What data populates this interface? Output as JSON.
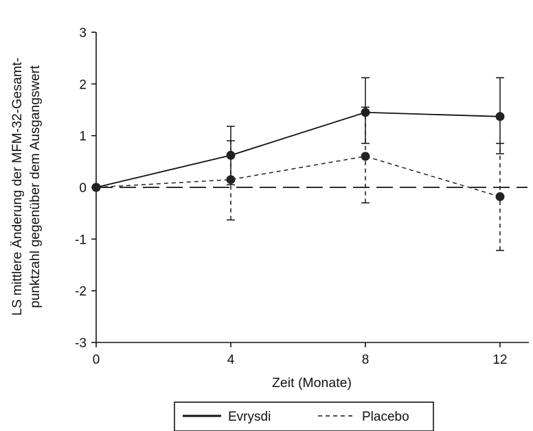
{
  "chart_data": {
    "type": "line",
    "x": [
      0,
      4,
      8,
      12
    ],
    "xticks": [
      "0",
      "4",
      "8",
      "12"
    ],
    "yticks": [
      "3",
      "2",
      "1",
      "0",
      "-1",
      "-2",
      "-3"
    ],
    "xlabel": "Zeit (Monate)",
    "ylabel_line1": "LS mittlere Änderung der MFM-32-Gesamt-",
    "ylabel_line2": "punktzahl gegenüber dem Ausgangswert",
    "xlim": [
      0,
      12
    ],
    "ylim": [
      -3,
      3
    ],
    "reference_line": 0,
    "series": [
      {
        "name": "Evrysdi",
        "style": "solid",
        "values": [
          0.0,
          0.62,
          1.45,
          1.37
        ],
        "error_low": [
          0.0,
          0.05,
          0.85,
          0.65
        ],
        "error_high": [
          0.0,
          1.18,
          2.12,
          2.12
        ]
      },
      {
        "name": "Placebo",
        "style": "dashed",
        "values": [
          0.0,
          0.15,
          0.6,
          -0.18
        ],
        "error_low": [
          0.0,
          -0.63,
          -0.3,
          -1.22
        ],
        "error_high": [
          0.0,
          0.9,
          1.55,
          0.85
        ]
      }
    ],
    "legend_position": "bottom-center",
    "grid": false
  }
}
